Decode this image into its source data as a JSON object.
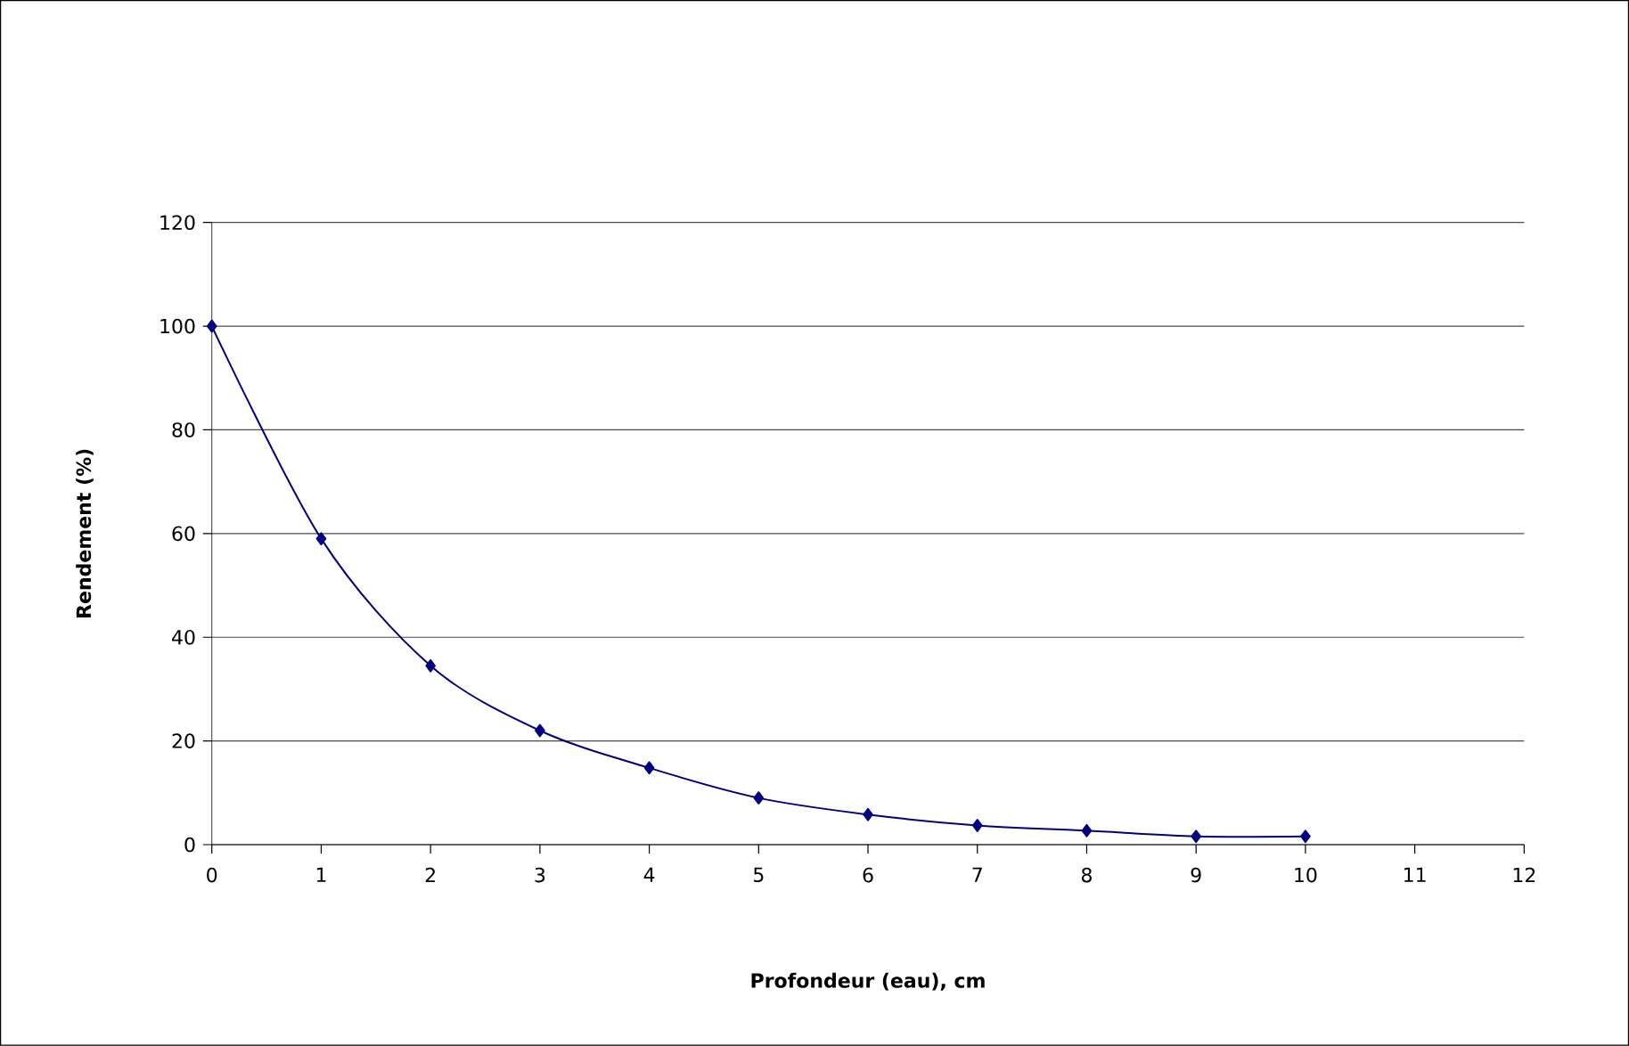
{
  "chart_data": {
    "type": "line",
    "xlabel": "Profondeur (eau), cm",
    "ylabel": "Rendement (%)",
    "x": [
      0,
      1,
      2,
      3,
      4,
      5,
      6,
      7,
      8,
      9,
      10
    ],
    "series": [
      {
        "color": "#000080",
        "values": [
          100,
          59,
          34.5,
          22,
          14.8,
          9,
          5.8,
          3.7,
          2.7,
          1.6,
          1.6
        ]
      }
    ],
    "xlim": [
      0,
      12
    ],
    "xticks": [
      0,
      1,
      2,
      3,
      4,
      5,
      6,
      7,
      8,
      9,
      10,
      11,
      12
    ],
    "ylim": [
      0,
      120
    ],
    "yticks": [
      0,
      20,
      40,
      60,
      80,
      100,
      120
    ],
    "grid": "y",
    "marker": "diamond",
    "line_style": "solid"
  }
}
